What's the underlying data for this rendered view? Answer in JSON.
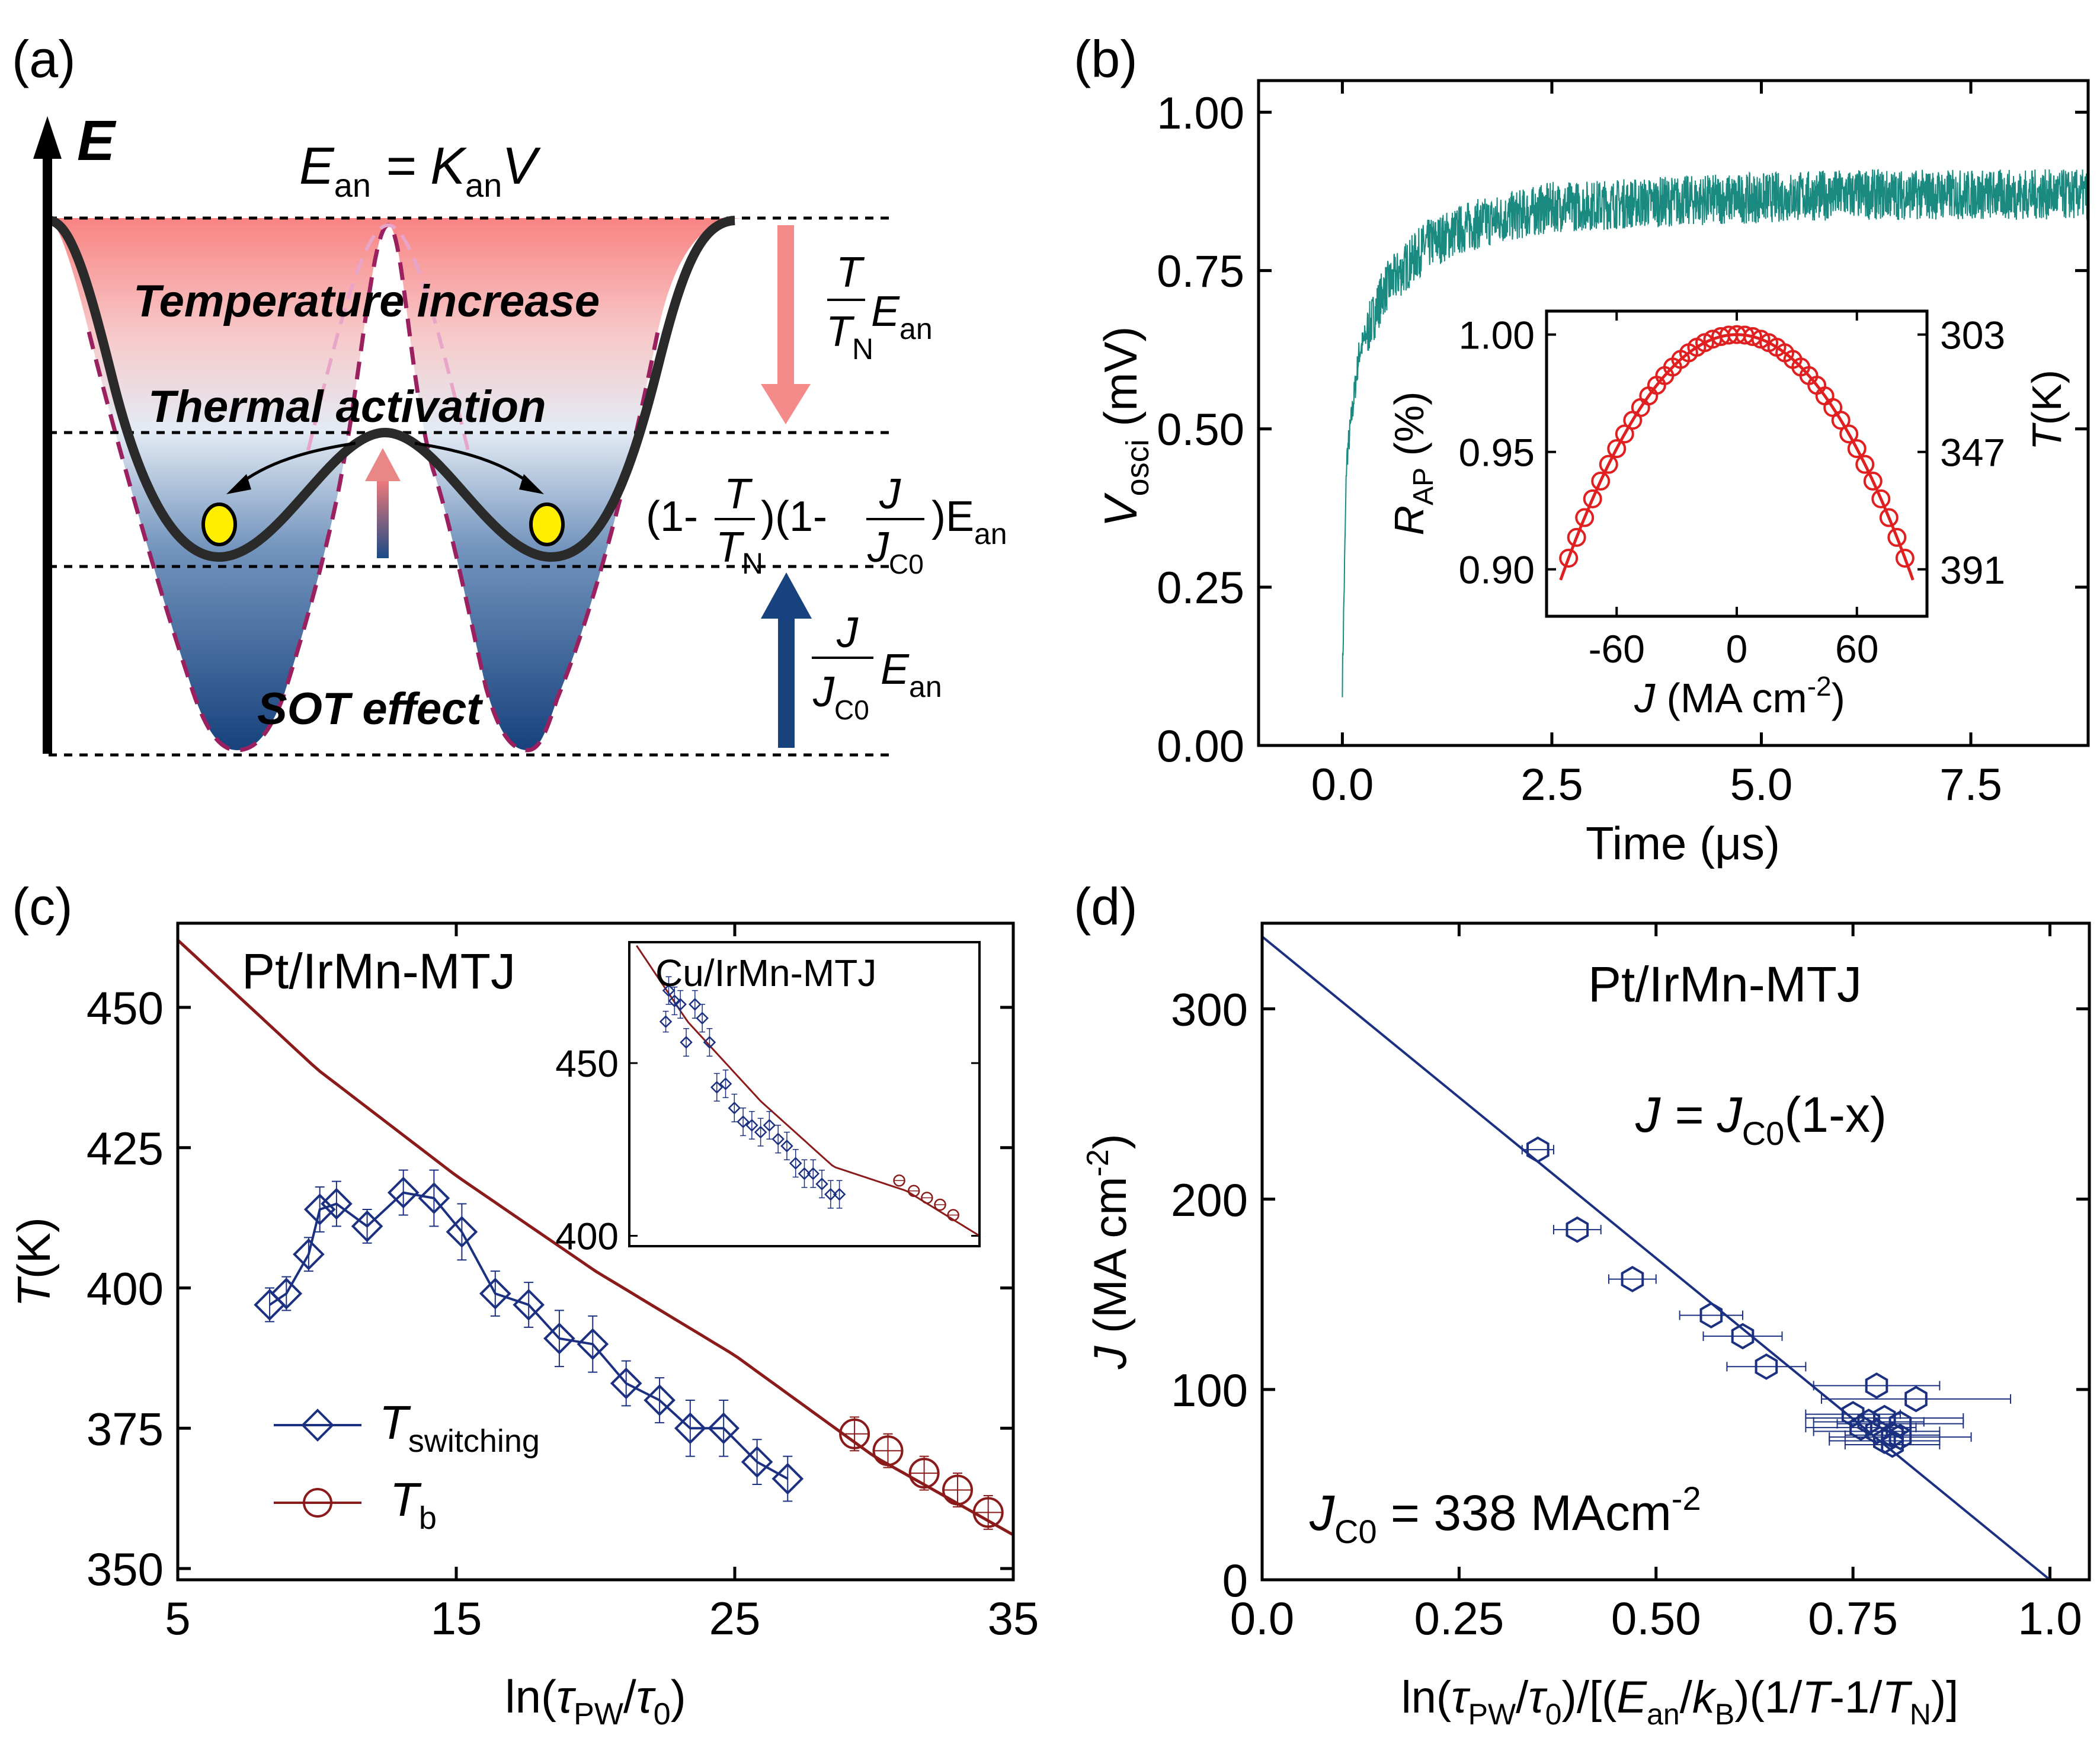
{
  "colors": {
    "teal": "#1a8a80",
    "navy": "#1b3080",
    "maroon": "#8b1a1a",
    "red": "#e02020",
    "pink": "#f08080",
    "sky": "#1a4a80",
    "yellow": "#ffee00",
    "dashed_purple": "#9b2060"
  },
  "panel_a": {
    "panel_label": "(a)",
    "axis_label": "E",
    "formula": {
      "e": "E",
      "an1": "an",
      "eq": " = K",
      "an2": "an",
      "v": "V"
    },
    "text_temperature": "Temperature increase",
    "text_thermal": "Thermal activation",
    "text_sot": "SOT effect",
    "eq_top": {
      "num": "T",
      "den": "T",
      "den_sub": "N",
      "e": "E",
      "sub": "an"
    },
    "eq_mid": {
      "a": "(1-",
      "f1_num": "T",
      "f1_den": "T",
      "f1_sub": "N",
      "b": ")(1-",
      "f2_num": "J",
      "f2_den": "J",
      "f2_sub": "C0",
      "c": ")E",
      "sub": "an"
    },
    "eq_bot": {
      "num": "J",
      "den": "J",
      "den_sub": "C0",
      "e": "E",
      "sub": "an"
    }
  },
  "panel_b": {
    "panel_label": "(b)",
    "inset_texts": {
      "r": "R",
      "r_sub": "AP",
      "r_unit": " (%)",
      "t": "T",
      "t_unit": "(K)",
      "j": "J",
      "j_unit": " (MA cm",
      "j_exp": "-2",
      "j_close": ")"
    },
    "ylabel": {
      "v": "V",
      "sub": "osci",
      "unit": " (mV)"
    }
  },
  "panel_c": {
    "panel_label": "(c)",
    "sample_label": "Pt/IrMn-MTJ",
    "inset_label": "Cu/IrMn-MTJ",
    "legend": {
      "t1": "T",
      "t1_sub": "switching",
      "t2": "T",
      "t2_sub": "b"
    },
    "ylabel": {
      "t": "T",
      "unit": "(K)"
    },
    "xlabel": {
      "a": "ln(",
      "t1": "τ",
      "s1": "PW",
      "slash": "/",
      "t2": "τ",
      "s2": "0",
      "b": ")"
    }
  },
  "panel_d": {
    "panel_label": "(d)",
    "sample_label": "Pt/IrMn-MTJ",
    "eq": {
      "a": "J = J",
      "sub": "C0",
      "b": "(1-x)"
    },
    "jc0": {
      "a": "J",
      "sub": "C0",
      "b": " = 338 MAcm",
      "exp": "-2"
    },
    "ylabel": {
      "j": "J",
      "unit": " (MA cm",
      "exp": "-2",
      "close": ")"
    },
    "xlabel": {
      "a": "ln(",
      "t1": "τ",
      "s1": "PW",
      "b": "/",
      "t2": "τ",
      "s2": "0",
      "c": ")/[(",
      "e": "E",
      "s3": "an",
      "d": "/",
      "k": "k",
      "s4": "B",
      "f": ")(1/",
      "t": "T",
      "g": "-1/",
      "tn": "T",
      "s5": "N",
      "h": ")]"
    }
  },
  "chart_data": [
    {
      "id": "b",
      "type": "line",
      "title": "",
      "xlabel": "Time (μs)",
      "ylabel": "V_osci (mV)",
      "xlim": [
        -1.0,
        8.9
      ],
      "ylim": [
        0.0,
        1.05
      ],
      "xticks": [
        "0.0",
        "2.5",
        "5.0",
        "7.5"
      ],
      "yticks": [
        "0.00",
        "0.25",
        "0.50",
        "0.75",
        "1.00"
      ],
      "series": [
        {
          "name": "oscilloscope voltage",
          "envelope": "saturating rise from 0.10 to about 0.87",
          "x": [
            0.0,
            0.05,
            0.2,
            0.5,
            1.0,
            1.5,
            2.5,
            4.0,
            6.0,
            8.9
          ],
          "y": [
            0.1,
            0.45,
            0.62,
            0.72,
            0.79,
            0.82,
            0.85,
            0.86,
            0.87,
            0.87
          ],
          "noise_amplitude": 0.04
        }
      ]
    },
    {
      "id": "b-inset",
      "type": "scatter",
      "xlabel": "J (MA cm-2)",
      "ylabel": "R_AP (%)",
      "y2label": "T(K)",
      "xlim": [
        -95,
        95
      ],
      "ylim": [
        0.88,
        1.01
      ],
      "xticks": [
        "-60",
        "0",
        "60"
      ],
      "yticks": [
        "0.90",
        "0.95",
        "1.00"
      ],
      "y2ticks": [
        "303",
        "347",
        "391"
      ],
      "series": [
        {
          "name": "data (circles)",
          "model": "R = 1 - 1.35e-5 * J^2",
          "x_range": [
            -84,
            84
          ],
          "n_points": 43
        },
        {
          "name": "parabolic fit",
          "x": [
            -88,
            88
          ]
        }
      ]
    },
    {
      "id": "c",
      "type": "scatter",
      "xlabel": "ln(τPW/τ0)",
      "ylabel": "T(K)",
      "xlim": [
        5,
        35
      ],
      "ylim": [
        348,
        465
      ],
      "xticks": [
        "5",
        "15",
        "25",
        "35"
      ],
      "yticks": [
        "350",
        "375",
        "400",
        "425",
        "450"
      ],
      "series": [
        {
          "name": "T_switching",
          "x": [
            8.3,
            8.9,
            9.7,
            10.1,
            10.7,
            11.8,
            13.1,
            14.2,
            15.2,
            16.4,
            17.6,
            18.7,
            19.9,
            21.1,
            22.3,
            23.4,
            24.6,
            25.8,
            26.9
          ],
          "y": [
            397,
            399,
            406,
            414,
            415,
            411,
            417,
            416,
            410,
            399,
            397,
            391,
            390,
            383,
            380,
            375,
            375,
            369,
            366
          ],
          "err": [
            3,
            3,
            3,
            4,
            4,
            3,
            4,
            5,
            5,
            4,
            4,
            5,
            5,
            4,
            4,
            5,
            5,
            4,
            4
          ]
        },
        {
          "name": "T_b",
          "x": [
            29.3,
            30.5,
            31.8,
            33.0,
            34.1
          ],
          "y": [
            374,
            371,
            367,
            364,
            360
          ],
          "err": [
            3,
            3,
            3,
            3,
            3
          ]
        },
        {
          "name": "fit line",
          "x": [
            5,
            10,
            15,
            20,
            25,
            30,
            35
          ],
          "y": [
            462,
            439,
            420,
            403,
            388,
            370,
            356
          ]
        }
      ]
    },
    {
      "id": "c-inset",
      "type": "scatter",
      "title": "Cu/IrMn-MTJ",
      "xlim": [
        1,
        25
      ],
      "ylim": [
        397,
        485
      ],
      "yticks": [
        "400",
        "450"
      ],
      "series": [
        {
          "name": "blue diamonds",
          "x": [
            3.5,
            3.7,
            4.1,
            4.5,
            4.9,
            5.5,
            6.0,
            6.5,
            7.0,
            7.6,
            8.2,
            8.8,
            9.4,
            10.0,
            10.6,
            11.2,
            11.8,
            12.4,
            13.0,
            13.6,
            14.2,
            14.8,
            15.4
          ],
          "y": [
            462,
            471,
            468,
            467,
            456,
            467,
            463,
            456,
            443,
            444,
            437,
            433,
            432,
            430,
            432,
            428,
            426,
            421,
            418,
            418,
            415,
            412,
            412
          ],
          "err": [
            3,
            4,
            4,
            4,
            4,
            4,
            4,
            4,
            4,
            4,
            4,
            4,
            4,
            4,
            4,
            4,
            4,
            4,
            4,
            4,
            4,
            4,
            4
          ]
        },
        {
          "name": "red circles",
          "x": [
            19.5,
            20.5,
            21.4,
            22.3,
            23.2
          ],
          "y": [
            416,
            413,
            411,
            409,
            406
          ]
        },
        {
          "name": "fit line",
          "x": [
            1.5,
            5,
            10,
            15,
            20,
            25
          ],
          "y": [
            484,
            462,
            439,
            420,
            413,
            400
          ]
        }
      ]
    },
    {
      "id": "d",
      "type": "scatter",
      "xlabel": "ln(τPW/τ0)/[(Ean/kB)(1/T-1/TN)]",
      "ylabel": "J (MA cm-2)",
      "xlim": [
        0.0,
        1.05
      ],
      "ylim": [
        0,
        345
      ],
      "xticks": [
        "0.0",
        "0.25",
        "0.50",
        "0.75",
        "1.0"
      ],
      "yticks": [
        "0",
        "100",
        "200",
        "300"
      ],
      "series": [
        {
          "name": "data (hexagons)",
          "x": [
            0.35,
            0.4,
            0.47,
            0.57,
            0.61,
            0.64,
            0.78,
            0.75,
            0.77,
            0.79,
            0.81,
            0.83,
            0.76,
            0.78,
            0.8,
            0.81,
            0.79,
            0.8
          ],
          "y": [
            226,
            184,
            158,
            139,
            128,
            112,
            102,
            87,
            83,
            85,
            82,
            95,
            80,
            78,
            76,
            75,
            73,
            71
          ],
          "xerr": [
            0.02,
            0.03,
            0.03,
            0.04,
            0.05,
            0.05,
            0.08,
            0.06,
            0.07,
            0.1,
            0.08,
            0.12,
            0.07,
            0.08,
            0.06,
            0.09,
            0.07,
            0.06
          ]
        },
        {
          "name": "fit J = Jc0(1-x)",
          "x": [
            0.0,
            1.0
          ],
          "y": [
            338,
            0
          ]
        }
      ],
      "annotations": [
        "Pt/IrMn-MTJ",
        "J = JC0(1-x)",
        "JC0 = 338 MAcm-2"
      ]
    }
  ]
}
